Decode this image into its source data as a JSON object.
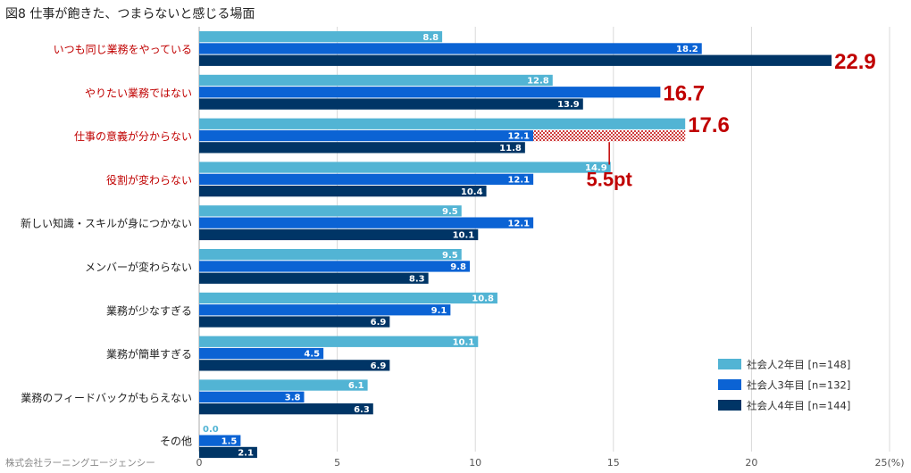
{
  "title": "図8 仕事が飽きた、つまらないと感じる場面",
  "credit": "株式会社ラーニングエージェンシー",
  "chart_data": {
    "type": "bar",
    "orientation": "horizontal",
    "title": "図8 仕事が飽きた、つまらないと感じる場面",
    "xlim": [
      0,
      25
    ],
    "x_ticks": [
      "0",
      "5",
      "10",
      "15",
      "20",
      "25(%)"
    ],
    "grid": true,
    "legend_position": "bottom-right",
    "categories": [
      "いつも同じ業務をやっている",
      "やりたい業務ではない",
      "仕事の意義が分からない",
      "役割が変わらない",
      "新しい知識・スキルが身につかない",
      "メンバーが変わらない",
      "業務が少なすぎる",
      "業務が簡単すぎる",
      "業務のフィードバックがもらえない",
      "その他"
    ],
    "highlighted_categories": [
      0,
      1,
      2,
      3
    ],
    "series": [
      {
        "name": "社会人2年目 [n=148]",
        "color": "#52b4d4",
        "values": [
          8.8,
          12.8,
          17.6,
          14.9,
          9.5,
          9.5,
          10.8,
          10.1,
          6.1,
          0.0
        ]
      },
      {
        "name": "社会人3年目 [n=132]",
        "color": "#0b63d4",
        "values": [
          18.2,
          16.7,
          12.1,
          12.1,
          12.1,
          9.8,
          9.1,
          4.5,
          3.8,
          1.5
        ]
      },
      {
        "name": "社会人4年目 [n=144]",
        "color": "#003566",
        "values": [
          22.9,
          13.9,
          11.8,
          10.4,
          10.1,
          8.3,
          6.9,
          6.9,
          6.3,
          2.1
        ]
      }
    ],
    "data_labels": [
      [
        "8.8",
        "18.2",
        "22.9"
      ],
      [
        "12.8",
        "16.7",
        "13.9"
      ],
      [
        "17.6",
        "12.1",
        "11.8"
      ],
      [
        "14.9",
        "12.1",
        "10.4"
      ],
      [
        "9.5",
        "12.1",
        "10.1"
      ],
      [
        "9.5",
        "9.8",
        "8.3"
      ],
      [
        "10.8",
        "9.1",
        "6.9"
      ],
      [
        "10.1",
        "4.5",
        "6.9"
      ],
      [
        "6.1",
        "3.8",
        "6.3"
      ],
      [
        "0.0",
        "1.5",
        "2.1"
      ]
    ],
    "emphasized_labels": [
      {
        "category": 0,
        "series": 2
      },
      {
        "category": 1,
        "series": 1
      },
      {
        "category": 2,
        "series": 0
      }
    ],
    "annotation": {
      "text": "5.5pt",
      "category": 2,
      "from_value": 12.1,
      "to_value": 17.6
    }
  },
  "colors": {
    "highlight_label": "#c00000",
    "normal_label": "#222222",
    "grid": "#d9d9d9",
    "axis": "#aaaaaa"
  }
}
